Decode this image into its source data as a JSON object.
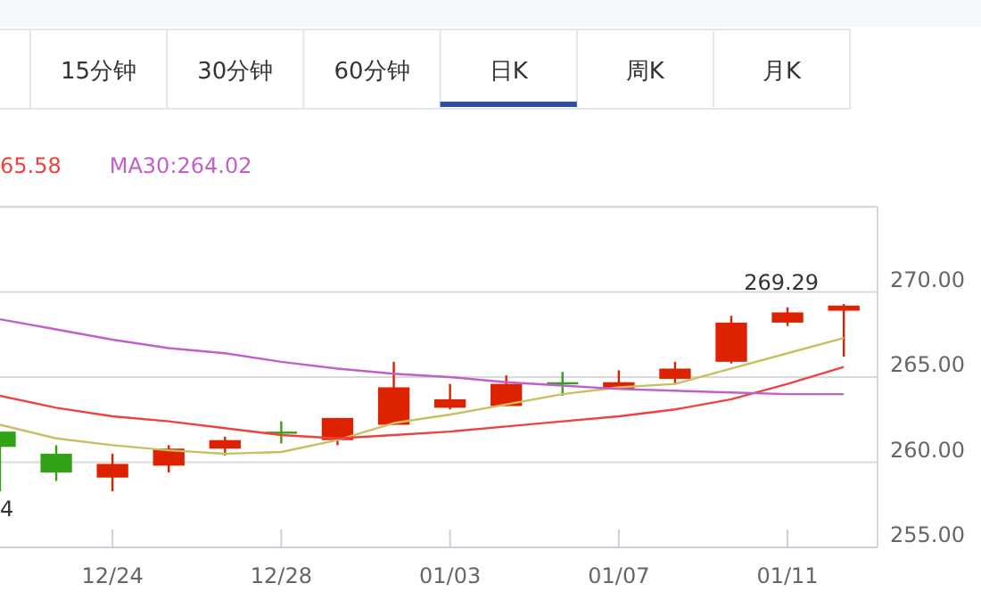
{
  "chart_data": {
    "type": "candlestick",
    "categories": [
      null,
      null,
      "12/24",
      null,
      null,
      "12/28",
      null,
      null,
      "01/03",
      null,
      null,
      "01/07",
      null,
      null,
      "01/11",
      null
    ],
    "ohlc": [
      [
        261.8,
        261.8,
        258.3,
        260.9
      ],
      [
        260.5,
        261.0,
        258.9,
        259.4
      ],
      [
        259.1,
        260.5,
        258.3,
        259.9
      ],
      [
        259.8,
        261.0,
        259.4,
        260.8
      ],
      [
        260.8,
        261.5,
        260.4,
        261.3
      ],
      [
        261.8,
        262.4,
        261.1,
        261.8
      ],
      [
        261.3,
        262.6,
        261.0,
        262.6
      ],
      [
        262.2,
        265.9,
        262.2,
        264.4
      ],
      [
        263.2,
        264.6,
        263.1,
        263.7
      ],
      [
        263.3,
        265.1,
        263.3,
        264.6
      ],
      [
        264.7,
        265.3,
        263.9,
        264.7
      ],
      [
        264.3,
        265.4,
        264.3,
        264.7
      ],
      [
        264.9,
        265.9,
        264.6,
        265.5
      ],
      [
        265.9,
        268.6,
        265.8,
        268.2
      ],
      [
        268.2,
        269.1,
        268.0,
        268.8
      ],
      [
        268.9,
        269.29,
        266.2,
        269.2
      ]
    ],
    "colors": [
      "#33a316",
      "#33a316",
      "#dd2200",
      "#dd2200",
      "#dd2200",
      "#33a316",
      "#dd2200",
      "#dd2200",
      "#dd2200",
      "#dd2200",
      "#33a316",
      "#dd2200",
      "#dd2200",
      "#dd2200",
      "#dd2200",
      "#dd2200"
    ],
    "series": [
      {
        "type": "line",
        "color": "#c8c060",
        "values": [
          262.2,
          261.4,
          261.0,
          260.7,
          260.5,
          260.6,
          261.3,
          262.3,
          262.8,
          263.4,
          264.0,
          264.4,
          264.6,
          265.5,
          266.4,
          267.3
        ]
      },
      {
        "type": "line",
        "name": "65.58",
        "color": "#f04040",
        "values": [
          263.9,
          263.2,
          262.7,
          262.4,
          262.0,
          261.6,
          261.4,
          261.6,
          261.8,
          262.1,
          262.4,
          262.7,
          263.1,
          263.7,
          264.6,
          265.6
        ]
      },
      {
        "type": "line",
        "name": "MA30:264.02",
        "color": "#c060c8",
        "values": [
          268.4,
          267.8,
          267.2,
          266.7,
          266.4,
          265.9,
          265.5,
          265.2,
          265.0,
          264.7,
          264.5,
          264.3,
          264.2,
          264.1,
          264.0,
          264.0
        ]
      }
    ],
    "ylim": [
      255,
      275
    ],
    "yticks": [
      {
        "value": 255,
        "label": "255.00"
      },
      {
        "value": 260,
        "label": "260.00"
      },
      {
        "value": 265,
        "label": "265.00"
      },
      {
        "value": 270,
        "label": "270.00"
      }
    ],
    "grid": "y",
    "legend": "top left",
    "annotations": [
      "15分钟",
      "30分钟",
      "60分钟",
      "日K",
      "周K",
      "月K",
      {
        "text": "269.29",
        "y": 269.29
      },
      "4"
    ]
  }
}
